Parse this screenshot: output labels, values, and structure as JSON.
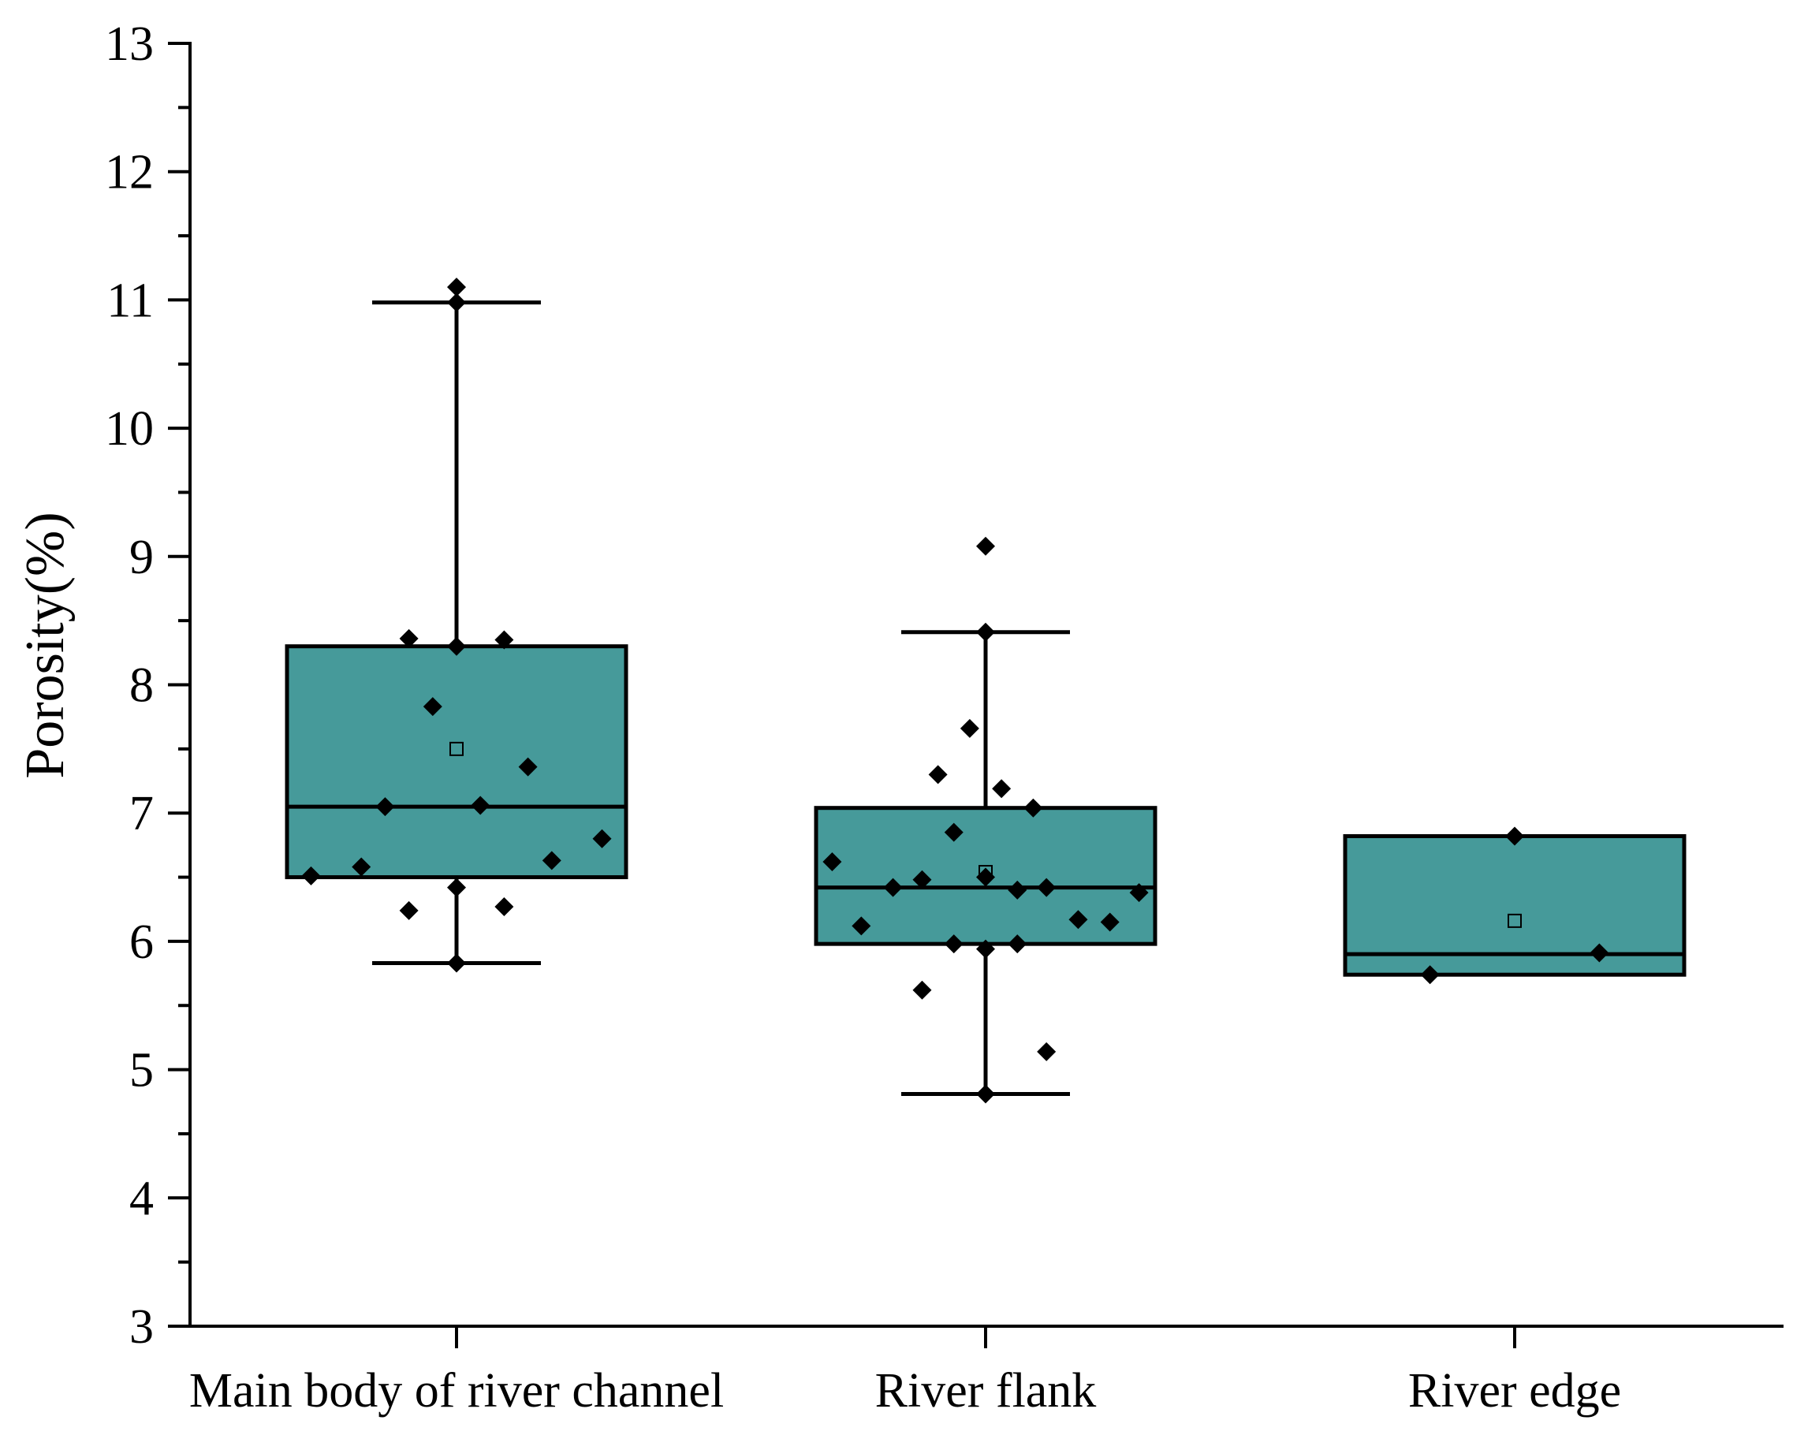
{
  "chart_data": {
    "type": "box",
    "title": "",
    "xlabel": "",
    "ylabel": "Porosity(%)",
    "ylim": [
      3,
      13
    ],
    "yticks": [
      "3",
      "4",
      "5",
      "6",
      "7",
      "8",
      "9",
      "10",
      "11",
      "12",
      "13"
    ],
    "y_minor_ticks": true,
    "grid": false,
    "legend": "none",
    "box_color": "#469A9A",
    "line_color": "#000000",
    "categories": [
      "Main body of river channel",
      "River flank",
      "River edge"
    ],
    "boxes": [
      {
        "category": "Main body of river channel",
        "whisker_low": 5.83,
        "q1": 6.5,
        "median": 7.05,
        "q3": 8.3,
        "whisker_high": 10.98,
        "mean": 7.5,
        "points": [
          {
            "offset": 0.0,
            "value": 11.1
          },
          {
            "offset": 0.0,
            "value": 10.98
          },
          {
            "offset": -0.09,
            "value": 8.36
          },
          {
            "offset": 0.0,
            "value": 8.3
          },
          {
            "offset": 0.09,
            "value": 8.35
          },
          {
            "offset": -0.045,
            "value": 7.83
          },
          {
            "offset": 0.135,
            "value": 7.36
          },
          {
            "offset": -0.135,
            "value": 7.05
          },
          {
            "offset": 0.045,
            "value": 7.06
          },
          {
            "offset": 0.275,
            "value": 6.8
          },
          {
            "offset": 0.18,
            "value": 6.63
          },
          {
            "offset": -0.18,
            "value": 6.58
          },
          {
            "offset": -0.275,
            "value": 6.51
          },
          {
            "offset": 0.0,
            "value": 6.42
          },
          {
            "offset": -0.09,
            "value": 6.24
          },
          {
            "offset": 0.09,
            "value": 6.27
          },
          {
            "offset": 0.0,
            "value": 5.83
          }
        ]
      },
      {
        "category": "River flank",
        "whisker_low": 4.81,
        "q1": 5.98,
        "median": 6.42,
        "q3": 7.04,
        "whisker_high": 8.41,
        "mean": 6.54,
        "points": [
          {
            "offset": 0.0,
            "value": 9.08
          },
          {
            "offset": 0.0,
            "value": 8.41
          },
          {
            "offset": -0.03,
            "value": 7.66
          },
          {
            "offset": -0.09,
            "value": 7.3
          },
          {
            "offset": 0.03,
            "value": 7.19
          },
          {
            "offset": 0.09,
            "value": 7.04
          },
          {
            "offset": -0.06,
            "value": 6.85
          },
          {
            "offset": -0.29,
            "value": 6.62
          },
          {
            "offset": -0.12,
            "value": 6.48
          },
          {
            "offset": 0.0,
            "value": 6.5
          },
          {
            "offset": -0.175,
            "value": 6.42
          },
          {
            "offset": 0.06,
            "value": 6.4
          },
          {
            "offset": 0.115,
            "value": 6.42
          },
          {
            "offset": 0.29,
            "value": 6.38
          },
          {
            "offset": 0.175,
            "value": 6.17
          },
          {
            "offset": 0.235,
            "value": 6.15
          },
          {
            "offset": -0.235,
            "value": 6.12
          },
          {
            "offset": -0.06,
            "value": 5.98
          },
          {
            "offset": 0.06,
            "value": 5.98
          },
          {
            "offset": 0.0,
            "value": 5.94
          },
          {
            "offset": -0.12,
            "value": 5.62
          },
          {
            "offset": 0.115,
            "value": 5.14
          },
          {
            "offset": 0.0,
            "value": 4.81
          }
        ]
      },
      {
        "category": "River edge",
        "whisker_low": 5.74,
        "q1": 5.74,
        "median": 5.9,
        "q3": 6.82,
        "whisker_high": 6.82,
        "mean": 6.16,
        "points": [
          {
            "offset": 0.0,
            "value": 6.82
          },
          {
            "offset": 0.16,
            "value": 5.91
          },
          {
            "offset": -0.16,
            "value": 5.74
          }
        ]
      }
    ]
  }
}
